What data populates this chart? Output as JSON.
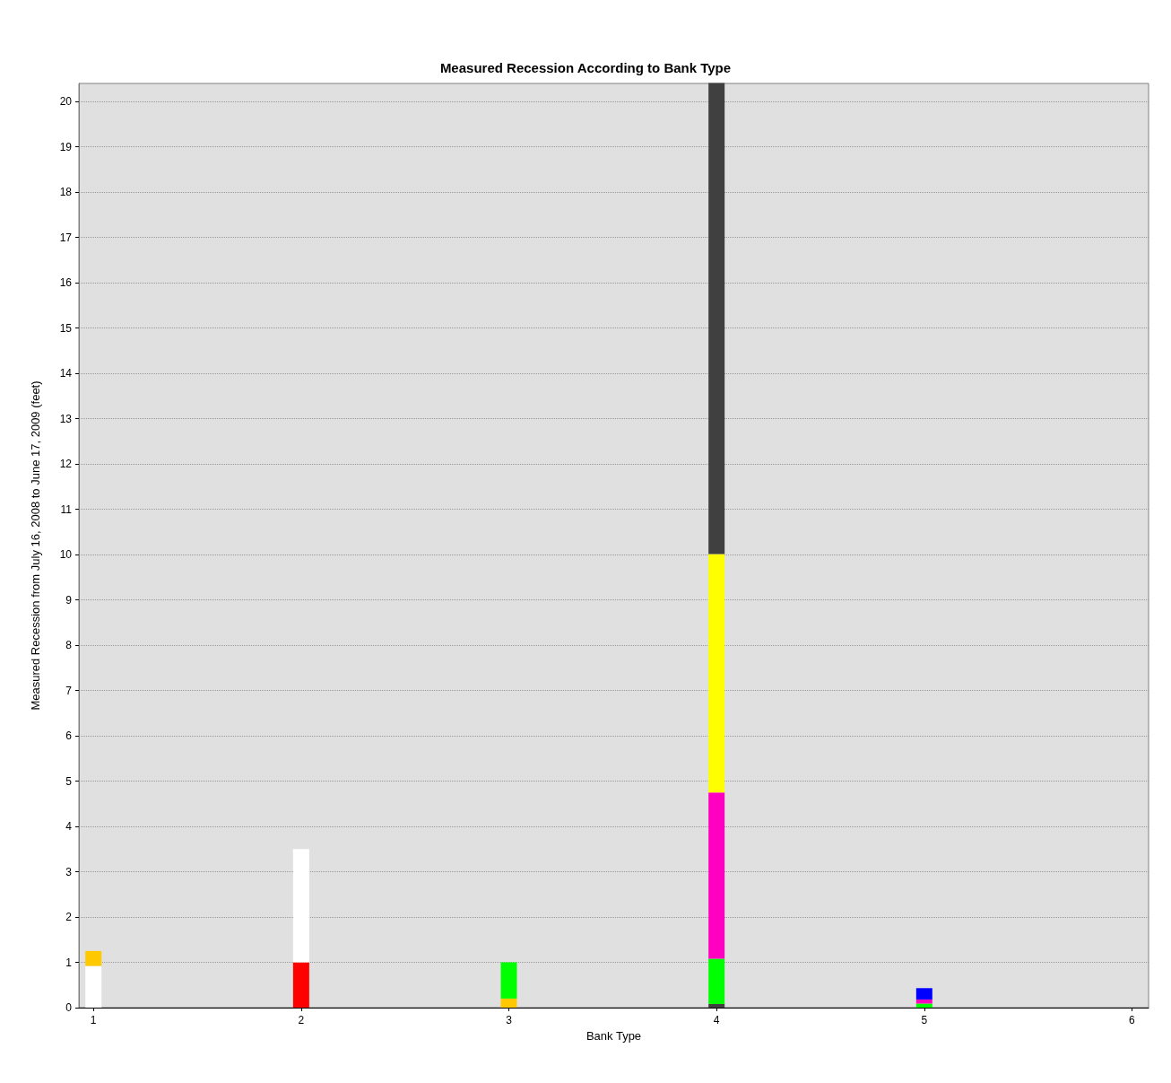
{
  "chart_data": {
    "type": "bar",
    "title": "Measured Recession According to Bank Type",
    "xlabel": "Bank Type",
    "ylabel": "Measured Recession from July 16, 2008 to June 17, 2009 (feet)",
    "x": [
      1,
      2,
      3,
      4,
      5
    ],
    "stacked": true,
    "series": [
      {
        "values": [
          0.92,
          1.0,
          0.2,
          0.08,
          0.09
        ],
        "colors": [
          "#ffffff",
          "#ff0000",
          "#ffc800",
          "#404040",
          "#00ff00"
        ]
      },
      {
        "values": [
          0.33,
          2.5,
          0.8,
          1.0,
          0.09
        ],
        "colors": [
          "#ffc800",
          "#ffffff",
          "#00ff00",
          "#00ff00",
          "#ff00c0"
        ]
      },
      {
        "values": [
          null,
          null,
          null,
          3.67,
          0.25
        ],
        "colors": [
          null,
          null,
          null,
          "#ff00c0",
          "#0000ff"
        ]
      },
      {
        "values": [
          null,
          null,
          null,
          5.26,
          null
        ],
        "colors": [
          null,
          null,
          null,
          "#ffff00",
          null
        ]
      },
      {
        "values": [
          null,
          null,
          null,
          10.4,
          null
        ],
        "colors": [
          null,
          null,
          null,
          "#404040",
          null
        ]
      }
    ],
    "xlim": [
      0.93,
      6.08
    ],
    "xticks": [
      1,
      2,
      3,
      4,
      5,
      6
    ],
    "ylim": [
      0,
      20.4
    ],
    "yticks": [
      0,
      1,
      2,
      3,
      4,
      5,
      6,
      7,
      8,
      9,
      10,
      11,
      12,
      13,
      14,
      15,
      16,
      17,
      18,
      19,
      20
    ],
    "grid": "y"
  }
}
